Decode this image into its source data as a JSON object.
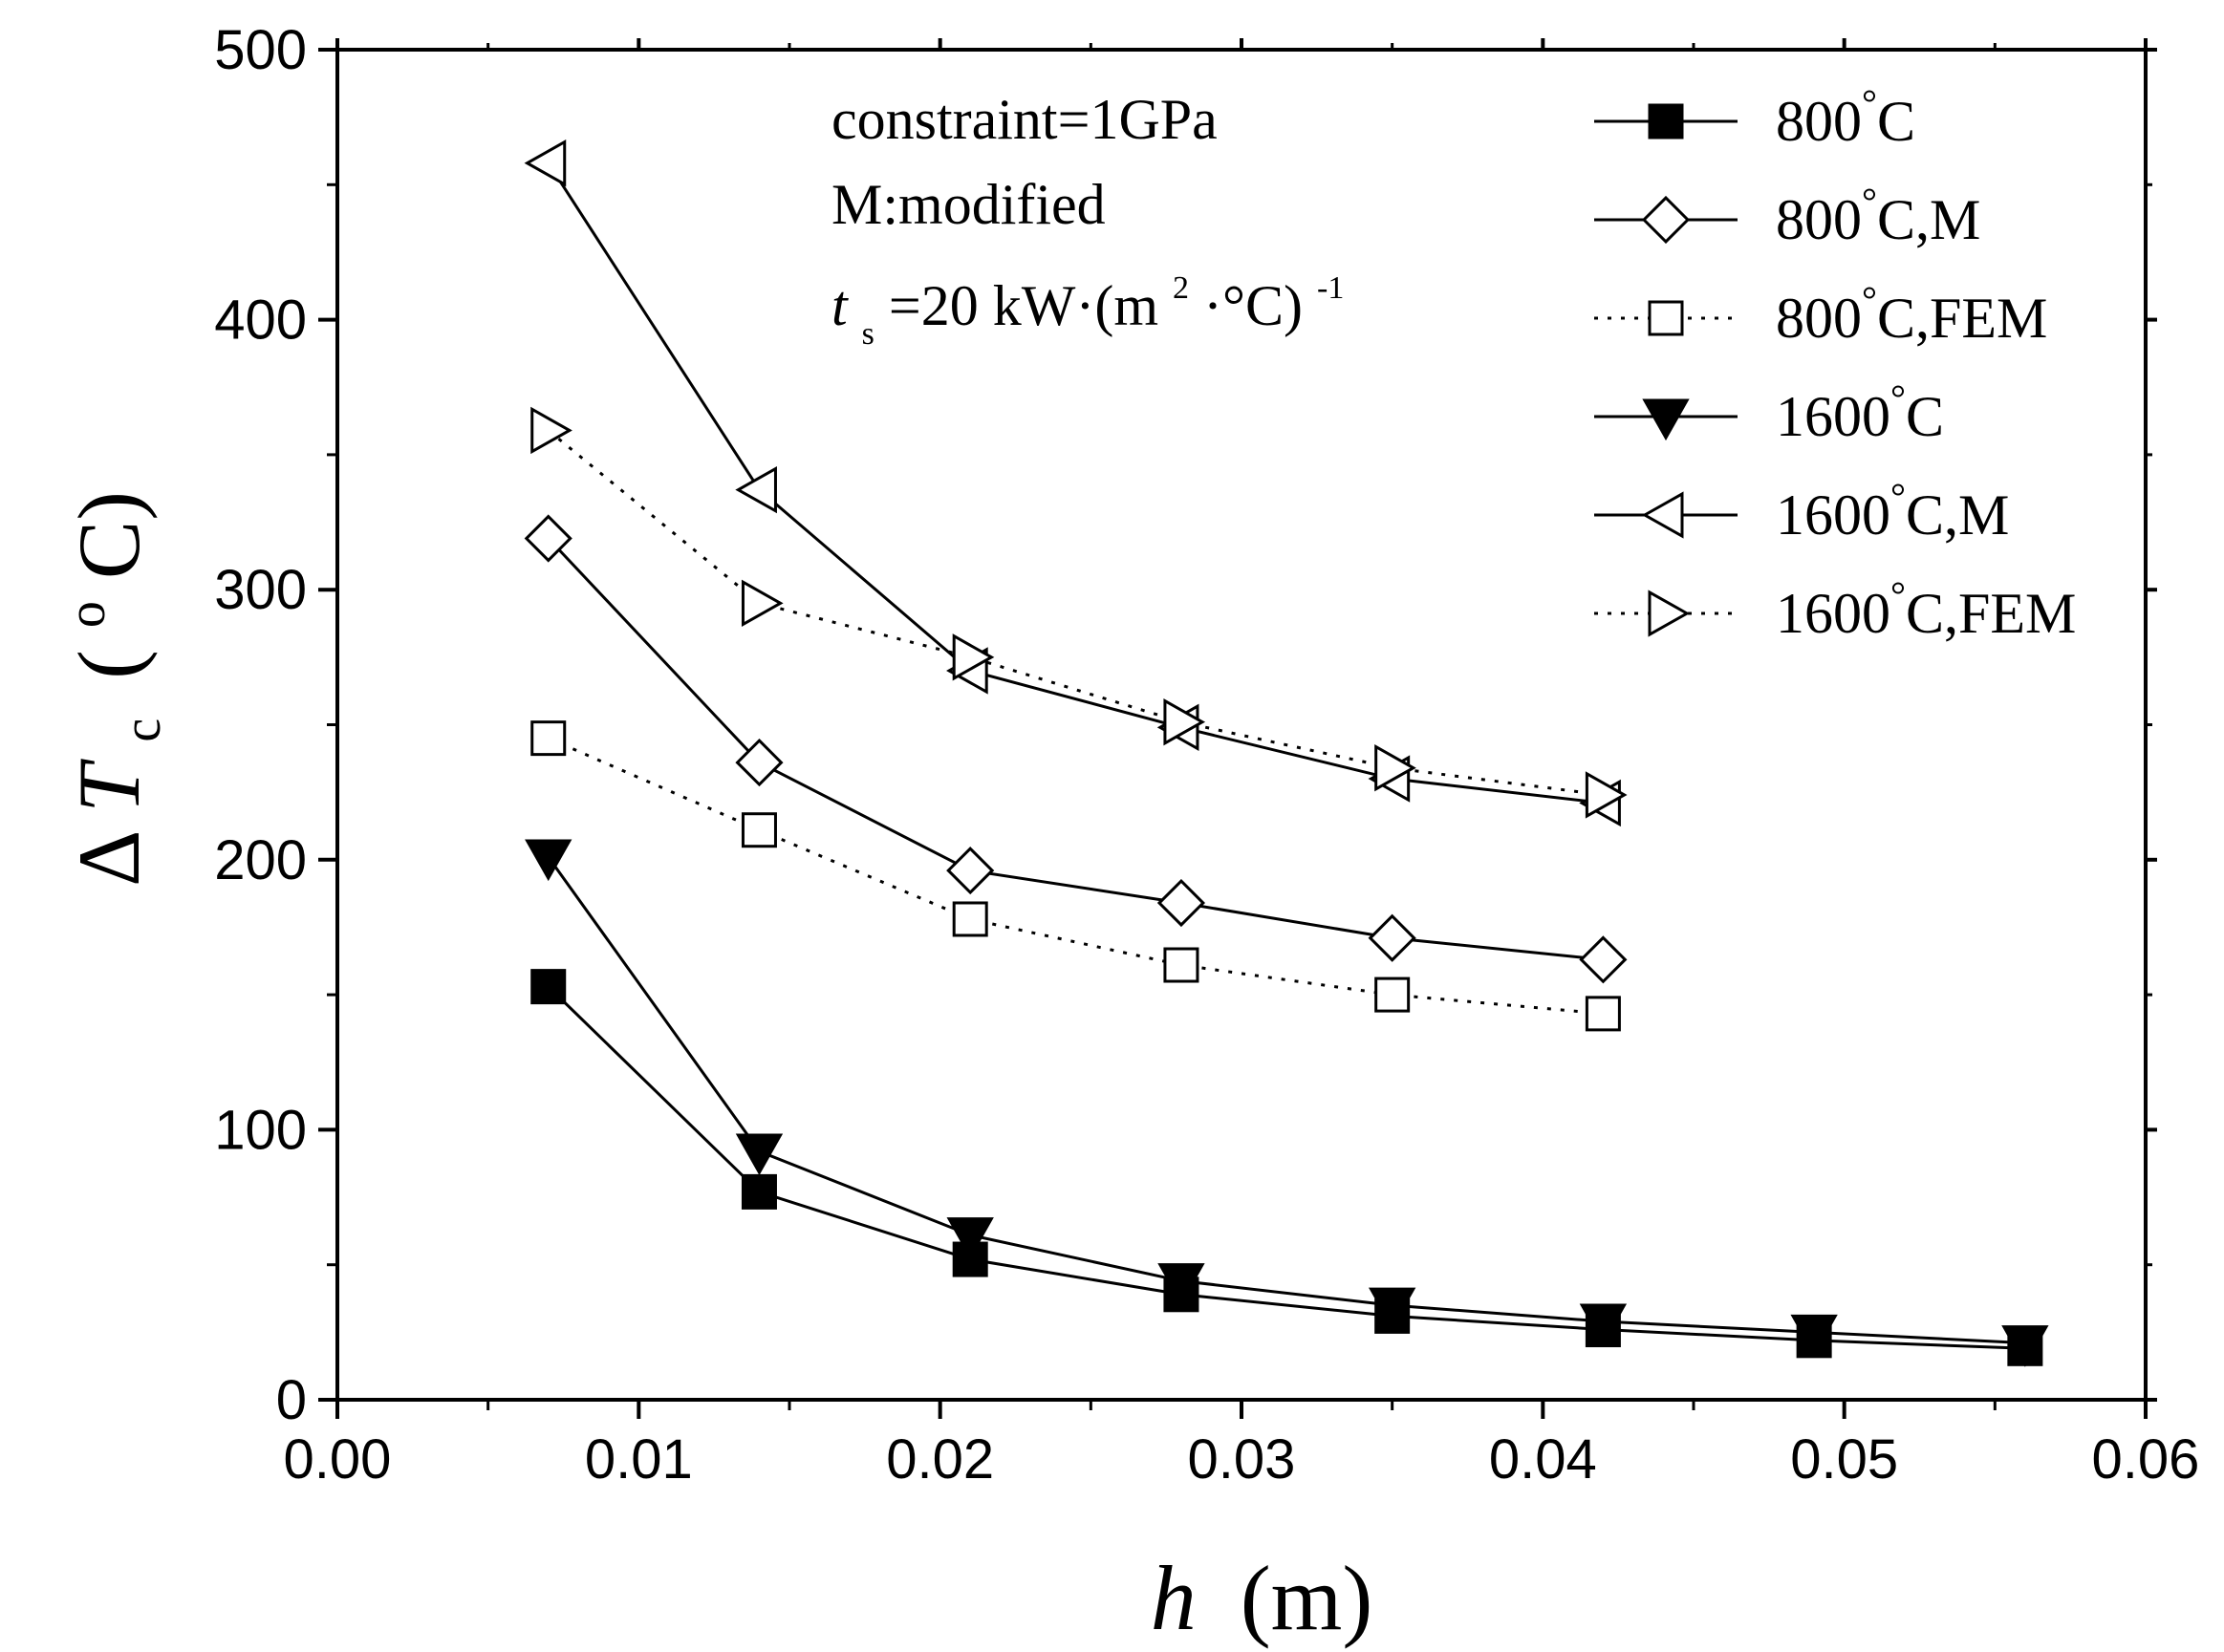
{
  "chart_data": {
    "type": "line",
    "xlabel": {
      "var": "h",
      "unit": "(m)"
    },
    "ylabel": {
      "prefix": "Δ",
      "var": "T",
      "sub": "c",
      "open": "(",
      "sup": "o",
      "unit": "C)"
    },
    "xlim": [
      0.0,
      0.06
    ],
    "ylim": [
      0,
      500
    ],
    "xticks": [
      "0.00",
      "0.01",
      "0.02",
      "0.03",
      "0.04",
      "0.05",
      "0.06"
    ],
    "yticks": [
      "0",
      "100",
      "200",
      "300",
      "400",
      "500"
    ],
    "grid": false,
    "legend_position": "top-right",
    "annotations": {
      "line1": "constraint=1GPa",
      "line2": "M:modified",
      "line3": {
        "var": "t",
        "sub": "s",
        "text": "=20 kW·(m",
        "sup1": "2",
        "mid": "·°C)",
        "sup2": "-1"
      }
    },
    "series": [
      {
        "name": "800°C",
        "marker": "square-filled",
        "dash": "solid",
        "x": [
          0.007,
          0.014,
          0.021,
          0.028,
          0.035,
          0.042,
          0.049,
          0.056
        ],
        "y": [
          153,
          77,
          52,
          39,
          31,
          26,
          22,
          19
        ]
      },
      {
        "name": "800°C,M",
        "marker": "diamond-open",
        "dash": "solid",
        "x": [
          0.007,
          0.014,
          0.021,
          0.028,
          0.035,
          0.042
        ],
        "y": [
          319,
          236,
          196,
          184,
          171,
          163
        ]
      },
      {
        "name": "800°C,FEM",
        "marker": "square-open",
        "dash": "dotted",
        "x": [
          0.007,
          0.014,
          0.021,
          0.028,
          0.035,
          0.042
        ],
        "y": [
          245,
          211,
          178,
          161,
          150,
          143
        ]
      },
      {
        "name": "1600°C",
        "marker": "triangle-down-filled",
        "dash": "solid",
        "x": [
          0.007,
          0.014,
          0.021,
          0.028,
          0.035,
          0.042,
          0.049,
          0.056
        ],
        "y": [
          201,
          92,
          61,
          44,
          35,
          29,
          25,
          21
        ]
      },
      {
        "name": "1600°C,M",
        "marker": "triangle-left-open",
        "dash": "solid",
        "x": [
          0.007,
          0.014,
          0.021,
          0.028,
          0.035,
          0.042
        ],
        "y": [
          458,
          337,
          270,
          249,
          230,
          221
        ]
      },
      {
        "name": "1600°C,FEM",
        "marker": "triangle-right-open",
        "dash": "dotted",
        "x": [
          0.007,
          0.014,
          0.021,
          0.028,
          0.035,
          0.042
        ],
        "y": [
          359,
          295,
          275,
          251,
          234,
          224
        ]
      }
    ]
  }
}
